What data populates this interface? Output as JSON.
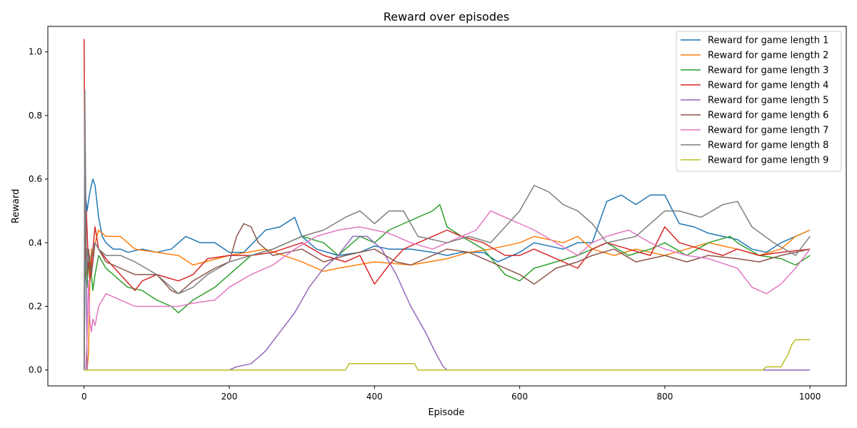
{
  "chart_data": {
    "type": "line",
    "title": "Reward over episodes",
    "xlabel": "Episode",
    "ylabel": "Reward",
    "xlim": [
      -50,
      1050
    ],
    "ylim": [
      -0.05,
      1.08
    ],
    "xticks": [
      0,
      200,
      400,
      600,
      800,
      1000
    ],
    "yticks": [
      0.0,
      0.2,
      0.4,
      0.6,
      0.8,
      1.0
    ],
    "xtick_labels": [
      "0",
      "200",
      "400",
      "600",
      "800",
      "1000"
    ],
    "ytick_labels": [
      "0.0",
      "0.2",
      "0.4",
      "0.6",
      "0.8",
      "1.0"
    ],
    "grid": false,
    "legend_position": "top-right",
    "series": [
      {
        "name": "Reward for game length 1",
        "color": "#1f77b4",
        "x": [
          0,
          2,
          4,
          8,
          12,
          15,
          20,
          25,
          30,
          40,
          50,
          60,
          80,
          100,
          120,
          140,
          160,
          180,
          200,
          220,
          250,
          270,
          290,
          300,
          320,
          350,
          380,
          400,
          420,
          450,
          480,
          500,
          520,
          550,
          570,
          600,
          620,
          640,
          660,
          680,
          700,
          720,
          740,
          760,
          780,
          800,
          820,
          840,
          860,
          880,
          900,
          920,
          940,
          960,
          980,
          1000
        ],
        "y": [
          0.0,
          0.55,
          0.5,
          0.56,
          0.6,
          0.58,
          0.48,
          0.42,
          0.4,
          0.38,
          0.38,
          0.37,
          0.38,
          0.37,
          0.38,
          0.42,
          0.4,
          0.4,
          0.37,
          0.37,
          0.44,
          0.45,
          0.48,
          0.42,
          0.38,
          0.36,
          0.37,
          0.39,
          0.38,
          0.38,
          0.37,
          0.36,
          0.37,
          0.37,
          0.34,
          0.37,
          0.4,
          0.39,
          0.38,
          0.4,
          0.4,
          0.53,
          0.55,
          0.52,
          0.55,
          0.55,
          0.46,
          0.45,
          0.43,
          0.42,
          0.41,
          0.38,
          0.37,
          0.4,
          0.42,
          0.44
        ]
      },
      {
        "name": "Reward for game length 2",
        "color": "#ff7f0e",
        "x": [
          0,
          4,
          6,
          8,
          10,
          12,
          15,
          20,
          30,
          50,
          70,
          100,
          130,
          150,
          200,
          250,
          300,
          330,
          350,
          400,
          450,
          500,
          530,
          560,
          600,
          620,
          640,
          660,
          680,
          700,
          730,
          760,
          800,
          830,
          860,
          900,
          930,
          960,
          980,
          1000
        ],
        "y": [
          0.0,
          0.0,
          0.05,
          0.3,
          0.38,
          0.36,
          0.4,
          0.44,
          0.42,
          0.42,
          0.38,
          0.37,
          0.36,
          0.33,
          0.36,
          0.38,
          0.34,
          0.31,
          0.32,
          0.34,
          0.33,
          0.35,
          0.37,
          0.38,
          0.4,
          0.42,
          0.41,
          0.4,
          0.42,
          0.38,
          0.36,
          0.38,
          0.36,
          0.38,
          0.4,
          0.38,
          0.36,
          0.38,
          0.42,
          0.44
        ]
      },
      {
        "name": "Reward for game length 3",
        "color": "#2ca02c",
        "x": [
          0,
          1,
          2,
          4,
          6,
          8,
          10,
          12,
          15,
          20,
          30,
          40,
          50,
          60,
          80,
          100,
          120,
          130,
          150,
          180,
          200,
          230,
          260,
          300,
          330,
          350,
          380,
          400,
          420,
          440,
          460,
          480,
          490,
          500,
          520,
          550,
          580,
          600,
          620,
          650,
          680,
          700,
          720,
          750,
          780,
          800,
          830,
          860,
          890,
          900,
          930,
          960,
          980,
          1000
        ],
        "y": [
          0.0,
          0.32,
          0.3,
          0.26,
          0.35,
          0.32,
          0.3,
          0.25,
          0.3,
          0.36,
          0.32,
          0.3,
          0.28,
          0.26,
          0.25,
          0.22,
          0.2,
          0.18,
          0.22,
          0.26,
          0.3,
          0.36,
          0.38,
          0.42,
          0.4,
          0.36,
          0.42,
          0.4,
          0.44,
          0.46,
          0.48,
          0.5,
          0.52,
          0.45,
          0.42,
          0.38,
          0.3,
          0.28,
          0.32,
          0.34,
          0.36,
          0.38,
          0.4,
          0.36,
          0.38,
          0.4,
          0.36,
          0.4,
          0.42,
          0.4,
          0.36,
          0.35,
          0.33,
          0.36
        ]
      },
      {
        "name": "Reward for game length 4",
        "color": "#d62728",
        "x": [
          0,
          1,
          2,
          3,
          5,
          8,
          12,
          15,
          20,
          30,
          50,
          70,
          80,
          100,
          130,
          150,
          170,
          200,
          230,
          260,
          300,
          330,
          360,
          380,
          400,
          420,
          440,
          460,
          480,
          500,
          520,
          550,
          580,
          600,
          620,
          650,
          680,
          700,
          720,
          750,
          780,
          800,
          820,
          850,
          880,
          900,
          930,
          960,
          1000
        ],
        "y": [
          1.04,
          0.6,
          0.35,
          0.5,
          0.38,
          0.28,
          0.38,
          0.45,
          0.38,
          0.35,
          0.3,
          0.25,
          0.28,
          0.3,
          0.28,
          0.3,
          0.35,
          0.36,
          0.36,
          0.37,
          0.4,
          0.36,
          0.34,
          0.36,
          0.27,
          0.33,
          0.38,
          0.4,
          0.42,
          0.44,
          0.42,
          0.4,
          0.36,
          0.36,
          0.38,
          0.35,
          0.32,
          0.38,
          0.4,
          0.38,
          0.36,
          0.45,
          0.4,
          0.38,
          0.36,
          0.38,
          0.36,
          0.37,
          0.38
        ]
      },
      {
        "name": "Reward for game length 5",
        "color": "#9467bd",
        "x": [
          0,
          1,
          2,
          3,
          4,
          5,
          6,
          8,
          200,
          210,
          230,
          250,
          270,
          290,
          310,
          330,
          350,
          370,
          390,
          410,
          430,
          450,
          470,
          485,
          495,
          500,
          1000
        ],
        "y": [
          0.0,
          0.82,
          0.6,
          0.3,
          0.0,
          0.0,
          0.0,
          0.0,
          0.0,
          0.01,
          0.02,
          0.06,
          0.12,
          0.18,
          0.26,
          0.32,
          0.36,
          0.42,
          0.42,
          0.38,
          0.3,
          0.2,
          0.12,
          0.05,
          0.01,
          0.0,
          0.0
        ]
      },
      {
        "name": "Reward for game length 6",
        "color": "#8c564b",
        "x": [
          0,
          1,
          2,
          4,
          6,
          10,
          15,
          20,
          30,
          50,
          70,
          100,
          120,
          130,
          150,
          180,
          200,
          210,
          220,
          230,
          240,
          260,
          300,
          330,
          360,
          400,
          430,
          450,
          480,
          500,
          530,
          560,
          600,
          620,
          650,
          680,
          700,
          730,
          760,
          800,
          830,
          860,
          900,
          930,
          960,
          1000
        ],
        "y": [
          0.0,
          0.58,
          0.4,
          0.3,
          0.38,
          0.3,
          0.4,
          0.38,
          0.34,
          0.32,
          0.3,
          0.3,
          0.25,
          0.24,
          0.28,
          0.32,
          0.34,
          0.42,
          0.46,
          0.45,
          0.4,
          0.36,
          0.38,
          0.34,
          0.36,
          0.38,
          0.34,
          0.33,
          0.36,
          0.38,
          0.37,
          0.34,
          0.3,
          0.27,
          0.32,
          0.34,
          0.36,
          0.38,
          0.34,
          0.36,
          0.34,
          0.36,
          0.35,
          0.34,
          0.36,
          0.38
        ]
      },
      {
        "name": "Reward for game length 7",
        "color": "#e377c2",
        "x": [
          0,
          2,
          4,
          6,
          8,
          10,
          12,
          15,
          20,
          30,
          50,
          70,
          100,
          130,
          150,
          180,
          200,
          230,
          260,
          290,
          320,
          350,
          380,
          400,
          420,
          450,
          480,
          500,
          520,
          540,
          560,
          580,
          600,
          620,
          650,
          680,
          700,
          720,
          750,
          780,
          800,
          830,
          860,
          900,
          920,
          940,
          960,
          980,
          1000
        ],
        "y": [
          0.0,
          0.0,
          0.1,
          0.28,
          0.15,
          0.12,
          0.16,
          0.14,
          0.2,
          0.24,
          0.22,
          0.2,
          0.2,
          0.2,
          0.21,
          0.22,
          0.26,
          0.3,
          0.33,
          0.38,
          0.42,
          0.44,
          0.45,
          0.44,
          0.43,
          0.4,
          0.38,
          0.4,
          0.42,
          0.44,
          0.5,
          0.48,
          0.46,
          0.44,
          0.4,
          0.36,
          0.4,
          0.42,
          0.44,
          0.4,
          0.38,
          0.36,
          0.35,
          0.32,
          0.26,
          0.24,
          0.27,
          0.32,
          0.38
        ]
      },
      {
        "name": "Reward for game length 8",
        "color": "#7f7f7f",
        "x": [
          0,
          1,
          2,
          3,
          4,
          6,
          10,
          15,
          20,
          30,
          50,
          70,
          100,
          130,
          150,
          170,
          200,
          230,
          260,
          300,
          330,
          360,
          380,
          400,
          420,
          440,
          460,
          500,
          530,
          560,
          600,
          620,
          640,
          660,
          680,
          700,
          720,
          760,
          800,
          820,
          850,
          880,
          900,
          920,
          950,
          980,
          1000
        ],
        "y": [
          0.0,
          0.88,
          0.5,
          0.3,
          0.38,
          0.34,
          0.36,
          0.4,
          0.38,
          0.36,
          0.36,
          0.34,
          0.3,
          0.24,
          0.26,
          0.3,
          0.34,
          0.36,
          0.38,
          0.42,
          0.44,
          0.48,
          0.5,
          0.46,
          0.5,
          0.5,
          0.42,
          0.4,
          0.42,
          0.4,
          0.5,
          0.58,
          0.56,
          0.52,
          0.5,
          0.46,
          0.4,
          0.42,
          0.5,
          0.5,
          0.48,
          0.52,
          0.53,
          0.45,
          0.4,
          0.36,
          0.42
        ]
      },
      {
        "name": "Reward for game length 9",
        "color": "#bcbd22",
        "x": [
          0,
          360,
          365,
          455,
          460,
          935,
          940,
          960,
          965,
          970,
          975,
          980,
          1000
        ],
        "y": [
          0.0,
          0.0,
          0.02,
          0.02,
          0.0,
          0.0,
          0.01,
          0.01,
          0.03,
          0.05,
          0.08,
          0.095,
          0.095
        ]
      }
    ]
  }
}
